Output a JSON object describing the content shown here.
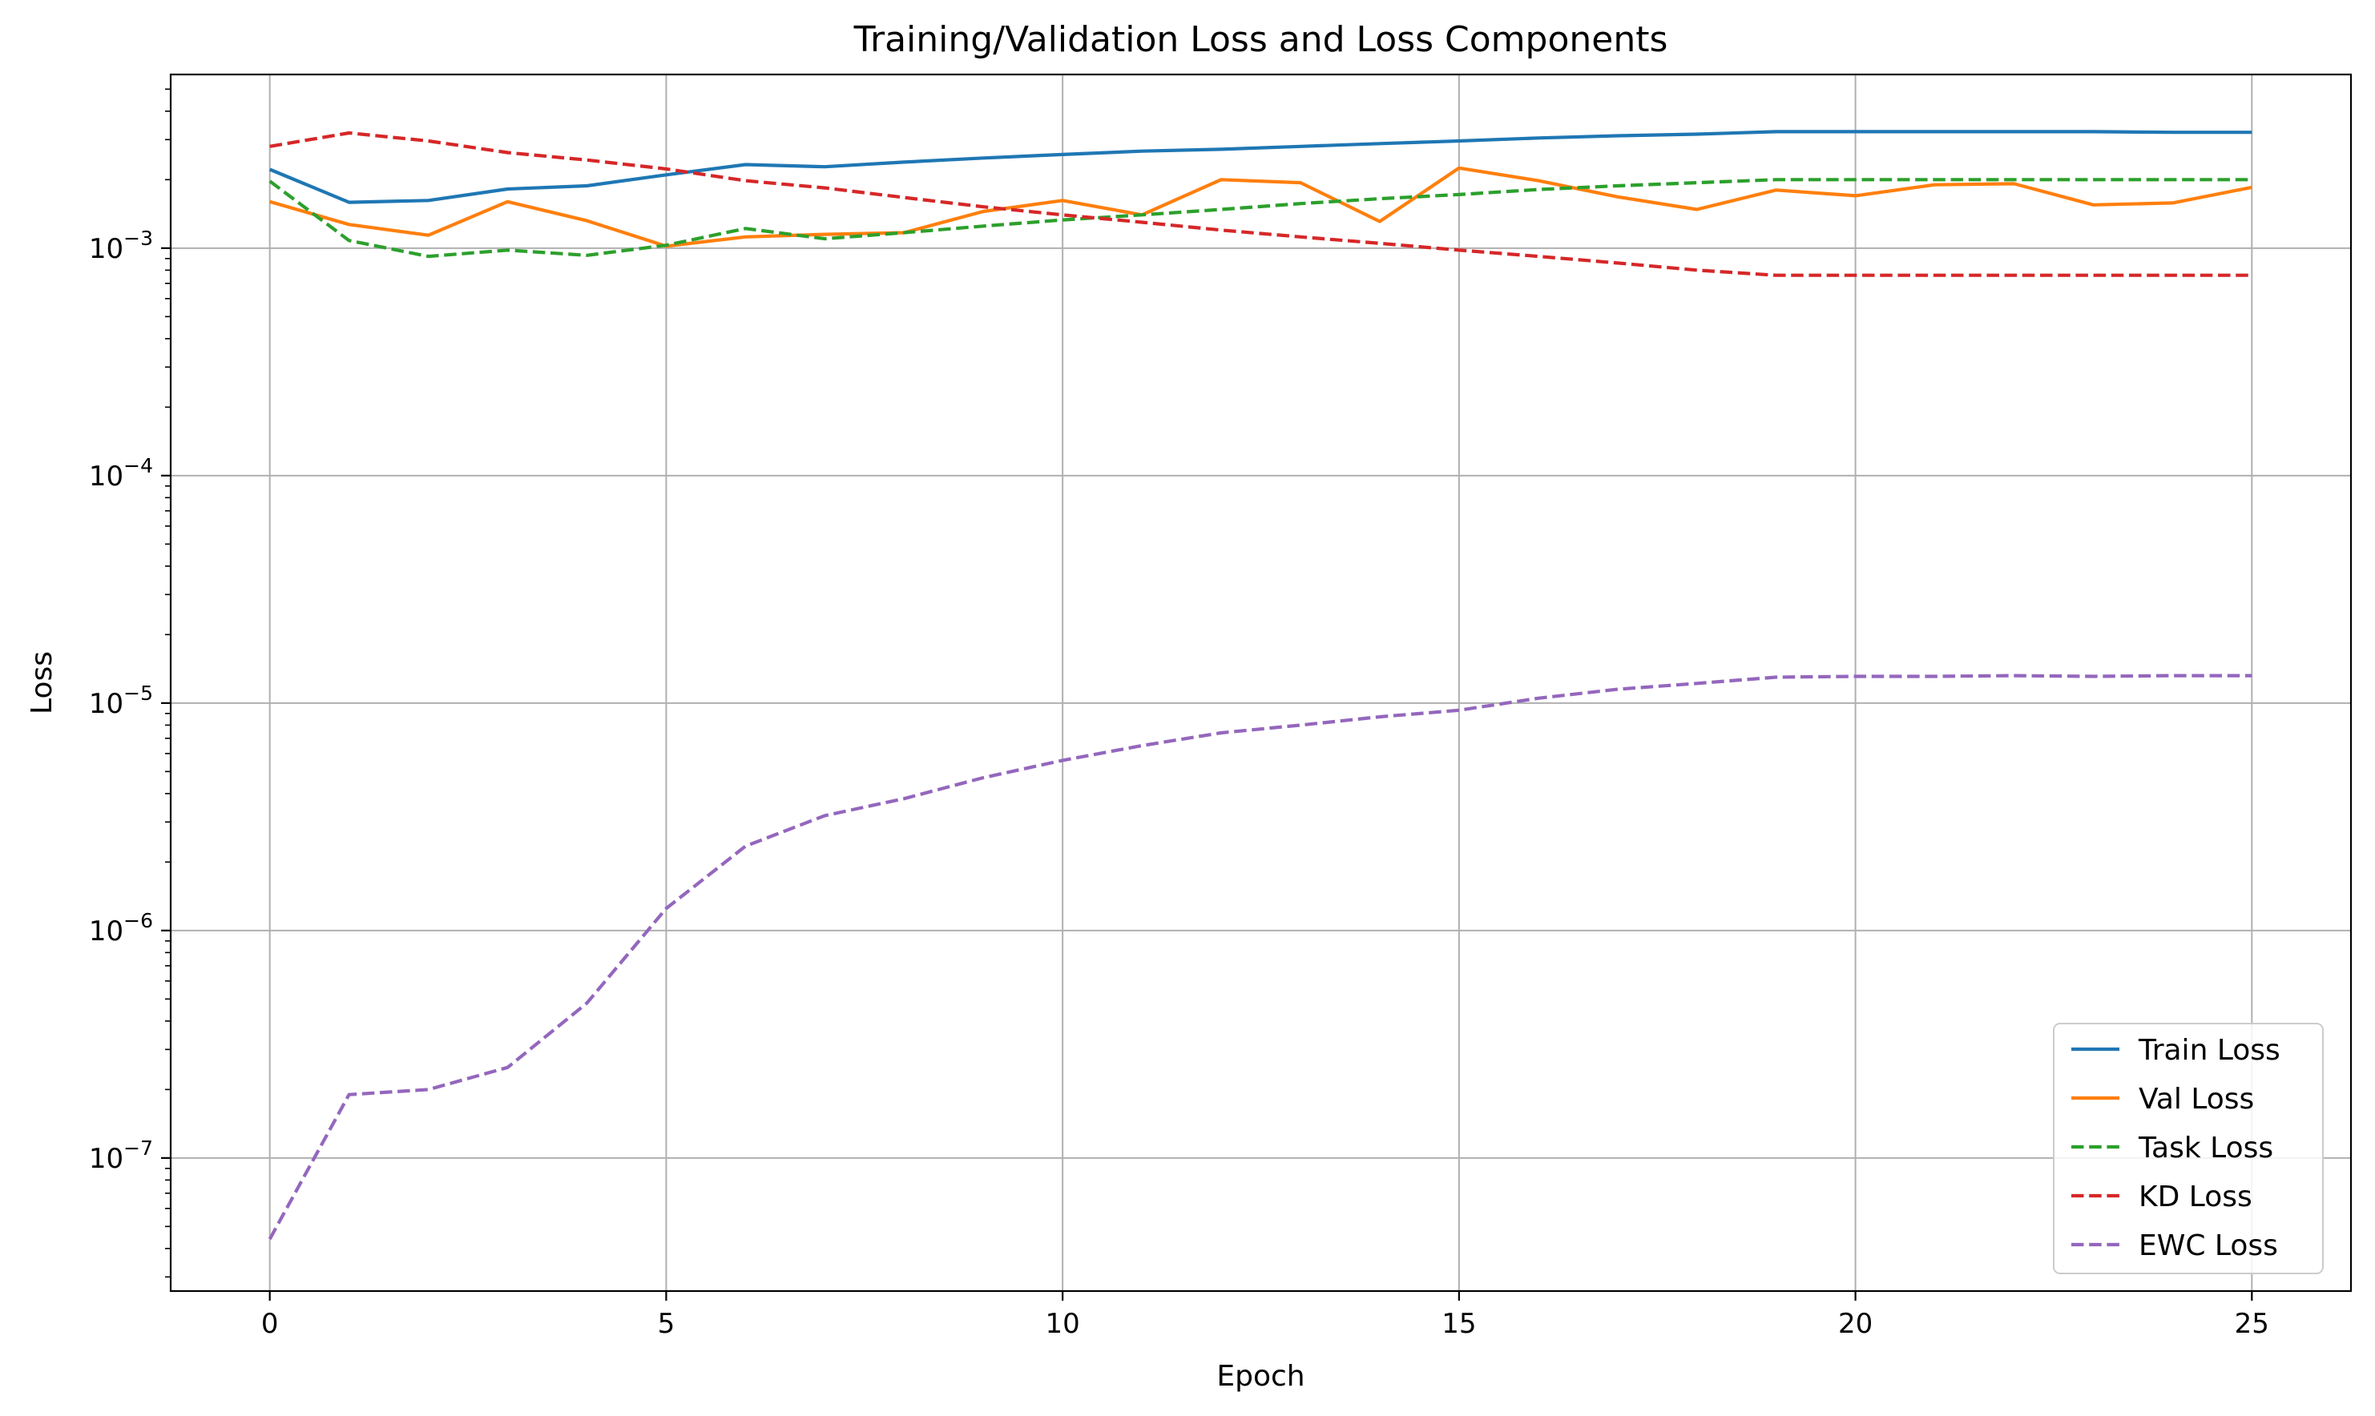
{
  "chart_data": {
    "type": "line",
    "title": "Training/Validation Loss and Loss Components",
    "xlabel": "Epoch",
    "ylabel": "Loss",
    "yscale": "log",
    "xlim": [
      -1.25,
      26.25
    ],
    "ylim": [
      2.6e-08,
      0.0058
    ],
    "xticks": [
      0,
      5,
      10,
      15,
      20,
      25
    ],
    "xtick_labels": [
      "0",
      "5",
      "10",
      "15",
      "20",
      "25"
    ],
    "yticks": [
      1e-07,
      1e-06,
      1e-05,
      0.0001,
      0.001
    ],
    "ytick_labels": [
      {
        "base": "10",
        "exp": "−7"
      },
      {
        "base": "10",
        "exp": "−6"
      },
      {
        "base": "10",
        "exp": "−5"
      },
      {
        "base": "10",
        "exp": "−4"
      },
      {
        "base": "10",
        "exp": "−3"
      }
    ],
    "grid": true,
    "legend": "lower-right",
    "x": [
      0,
      1,
      2,
      3,
      4,
      5,
      6,
      7,
      8,
      9,
      10,
      11,
      12,
      13,
      14,
      15,
      16,
      17,
      18,
      19,
      20,
      21,
      22,
      23,
      24,
      25
    ],
    "series": [
      {
        "name": "Train Loss",
        "color": "#1f77b4",
        "dash": "solid",
        "values": [
          0.00222,
          0.00159,
          0.00162,
          0.00182,
          0.00188,
          0.0021,
          0.00233,
          0.00228,
          0.00239,
          0.00249,
          0.00258,
          0.00267,
          0.00272,
          0.0028,
          0.00288,
          0.00296,
          0.00305,
          0.00312,
          0.00317,
          0.00325,
          0.00325,
          0.00325,
          0.00325,
          0.00325,
          0.00323,
          0.00323
        ]
      },
      {
        "name": "Val Loss",
        "color": "#ff7f0e",
        "dash": "solid",
        "values": [
          0.0016,
          0.00127,
          0.00114,
          0.0016,
          0.00132,
          0.00102,
          0.00112,
          0.00115,
          0.00117,
          0.00145,
          0.00162,
          0.0014,
          0.002,
          0.00194,
          0.00131,
          0.00225,
          0.00198,
          0.00168,
          0.00148,
          0.0018,
          0.0017,
          0.0019,
          0.00192,
          0.00155,
          0.00158,
          0.00185
        ]
      },
      {
        "name": "Task Loss",
        "color": "#2ca02c",
        "dash": "dashed",
        "values": [
          0.00197,
          0.00108,
          0.00092,
          0.00098,
          0.00093,
          0.00103,
          0.00122,
          0.0011,
          0.00117,
          0.00125,
          0.00133,
          0.0014,
          0.00148,
          0.00157,
          0.00165,
          0.00172,
          0.00181,
          0.00188,
          0.00194,
          0.002,
          0.002,
          0.002,
          0.002,
          0.002,
          0.002,
          0.002
        ]
      },
      {
        "name": "KD Loss",
        "color": "#d62728",
        "dash": "dashed",
        "values": [
          0.0028,
          0.00321,
          0.00296,
          0.00263,
          0.00244,
          0.00223,
          0.00198,
          0.00184,
          0.00167,
          0.00152,
          0.0014,
          0.0013,
          0.0012,
          0.00112,
          0.00105,
          0.00098,
          0.00092,
          0.00086,
          0.0008,
          0.00076,
          0.00076,
          0.00076,
          0.00076,
          0.00076,
          0.00076,
          0.00076
        ]
      },
      {
        "name": "EWC Loss",
        "color": "#9467bd",
        "dash": "dashed",
        "values": [
          4.4e-08,
          1.9e-07,
          2e-07,
          2.5e-07,
          4.8e-07,
          1.25e-06,
          2.35e-06,
          3.2e-06,
          3.8e-06,
          4.7e-06,
          5.6e-06,
          6.5e-06,
          7.4e-06,
          8e-06,
          8.7e-06,
          9.3e-06,
          1.05e-05,
          1.15e-05,
          1.22e-05,
          1.3e-05,
          1.31e-05,
          1.31e-05,
          1.32e-05,
          1.31e-05,
          1.32e-05,
          1.32e-05
        ]
      }
    ]
  }
}
